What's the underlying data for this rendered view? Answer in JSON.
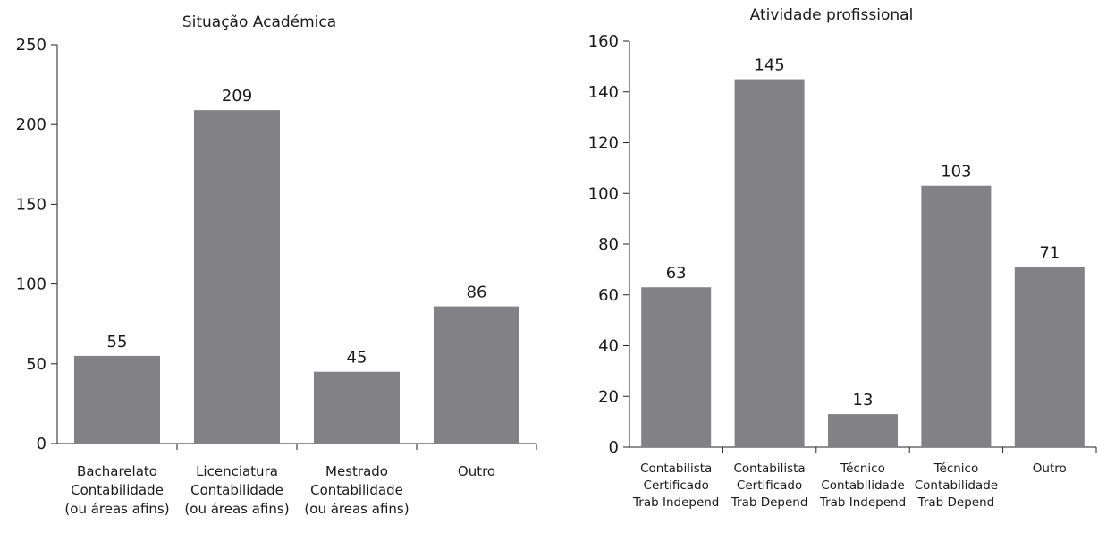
{
  "chart_data": [
    {
      "type": "bar",
      "title": "Situação Académica",
      "categories": [
        [
          "Bacharelato",
          "Contabilidade",
          "(ou áreas afins)"
        ],
        [
          "Licenciatura",
          "Contabilidade",
          "(ou áreas afins)"
        ],
        [
          "Mestrado",
          "Contabilidade",
          "(ou áreas afins)"
        ],
        [
          "Outro"
        ]
      ],
      "values": [
        55,
        209,
        45,
        86
      ],
      "ylim": [
        0,
        250
      ],
      "yticks": [
        0,
        50,
        100,
        150,
        200,
        250
      ],
      "bar_color": "#818186",
      "grid": false
    },
    {
      "type": "bar",
      "title": "Atividade profissional",
      "categories": [
        [
          "Contabilista",
          "Certificado",
          "Trab Independ"
        ],
        [
          "Contabilista",
          "Certificado",
          "Trab Depend"
        ],
        [
          "Técnico",
          "Contabilidade",
          "Trab Independ"
        ],
        [
          "Técnico",
          "Contabilidade",
          "Trab Depend"
        ],
        [
          "Outro"
        ]
      ],
      "values": [
        63,
        145,
        13,
        103,
        71
      ],
      "ylim": [
        0,
        160
      ],
      "yticks": [
        0,
        20,
        40,
        60,
        80,
        100,
        120,
        140,
        160
      ],
      "bar_color": "#818186",
      "grid": false
    }
  ]
}
